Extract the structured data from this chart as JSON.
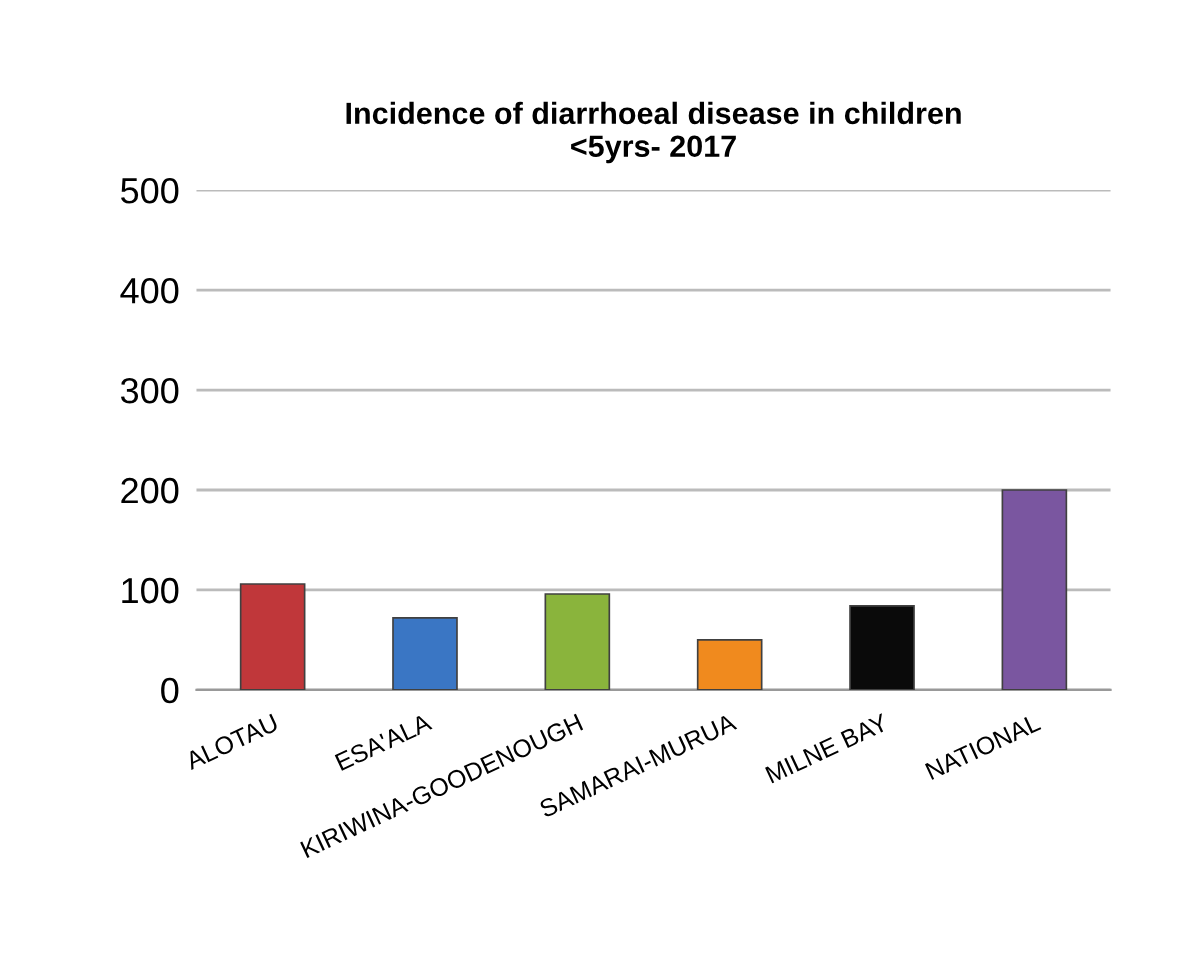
{
  "chart_data": {
    "type": "bar",
    "title": "Incidence of diarrhoeal disease in children\n<5yrs- 2017",
    "categories": [
      "ALOTAU",
      "ESA'ALA",
      "KIRIWINA-GOODENOUGH",
      "SAMARAI-MURUA",
      "MILNE BAY",
      "NATIONAL"
    ],
    "values": [
      106,
      72,
      96,
      50,
      84,
      200
    ],
    "colors": [
      "#c0373a",
      "#3a76c4",
      "#8ab43c",
      "#f08a1e",
      "#0a0a0a",
      "#7a56a0"
    ],
    "ylim": [
      0,
      500
    ],
    "yticks": [
      0,
      100,
      200,
      300,
      400,
      500
    ],
    "grid": "y"
  }
}
